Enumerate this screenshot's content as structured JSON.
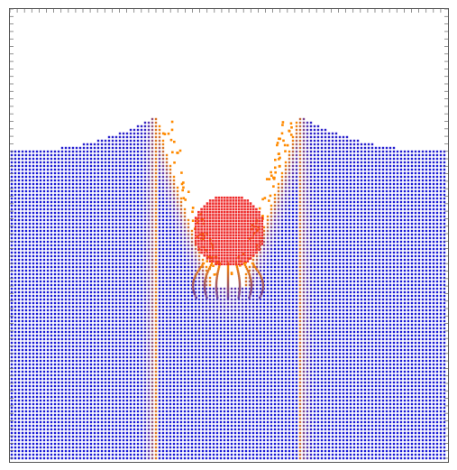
{
  "colors": {
    "background": "#ffffff",
    "frame": "#555555",
    "ticks": "#777777",
    "fluid_deep": "#1a1ad6",
    "fluid_mid": "#6a3fa8",
    "fluid_hot": "#ff8a00",
    "ball": "#ee2b2b"
  },
  "scene": {
    "type": "particle-simulation",
    "description_visible_text": ""
  }
}
